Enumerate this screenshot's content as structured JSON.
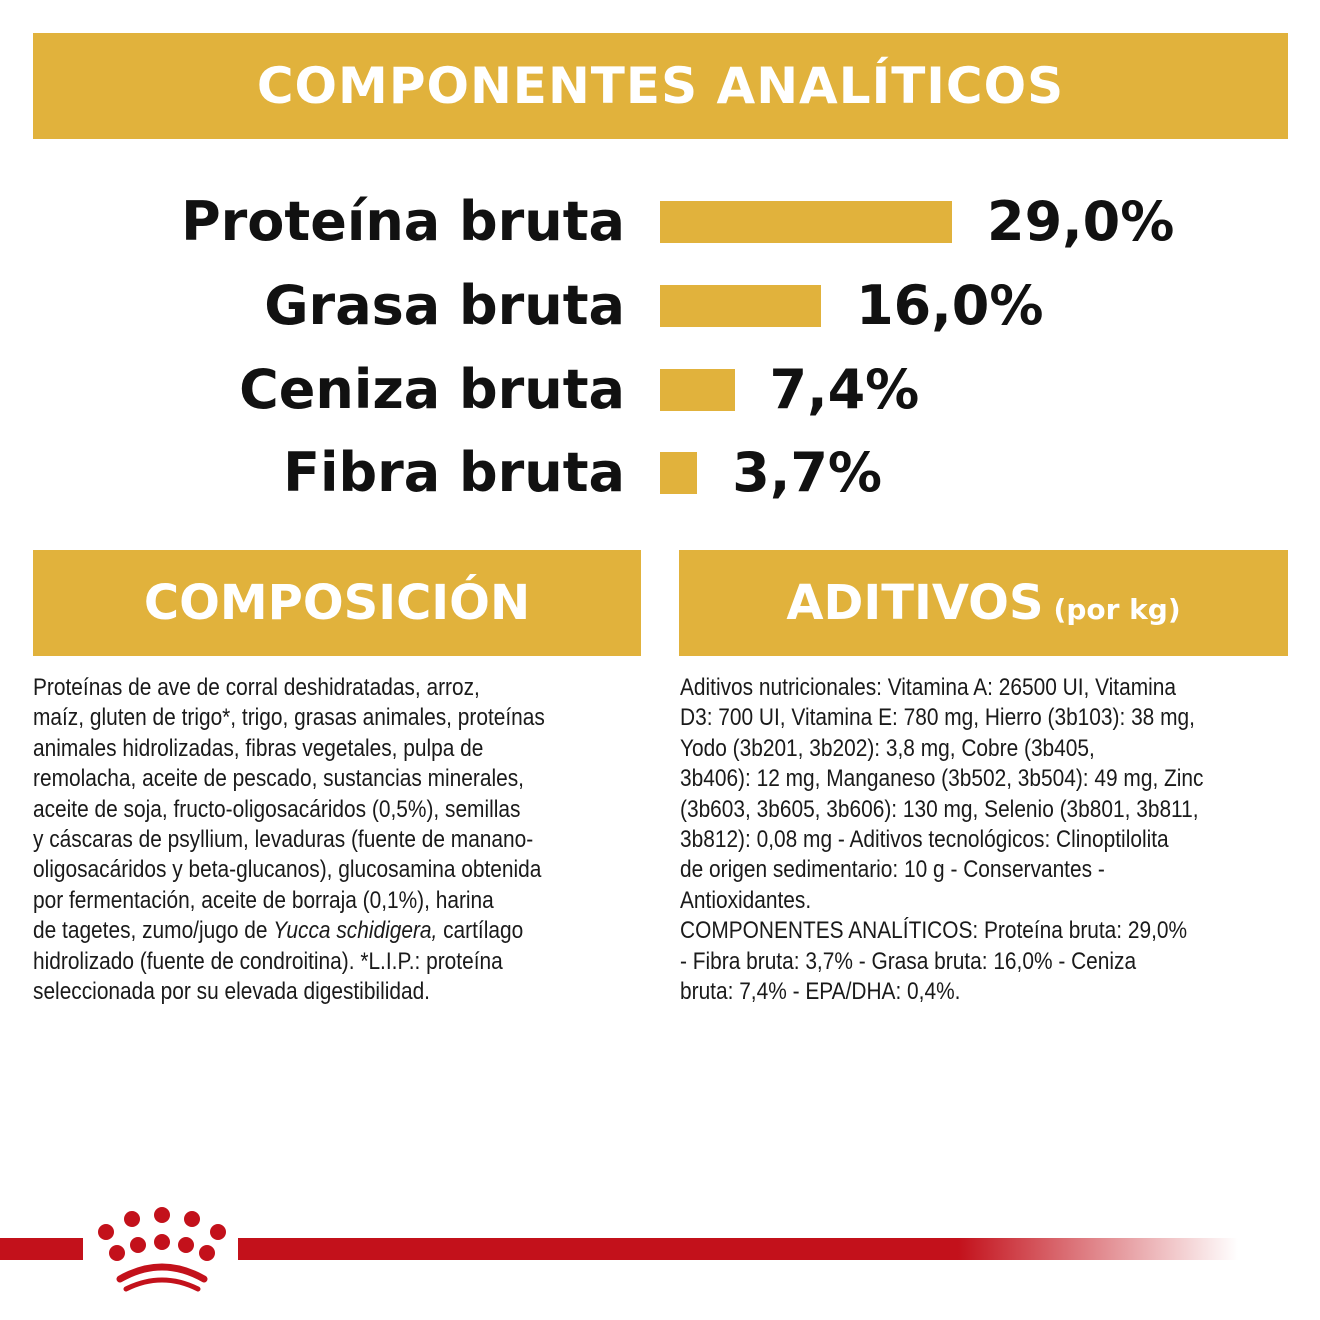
{
  "header": {
    "title": "COMPONENTES ANALÍTICOS"
  },
  "colors": {
    "gold": "#E1B23C",
    "brand_red": "#C3111B"
  },
  "chart_data": {
    "type": "bar",
    "orientation": "horizontal",
    "categories": [
      "Proteína bruta",
      "Grasa bruta",
      "Ceniza bruta",
      "Fibra bruta"
    ],
    "values": [
      29.0,
      16.0,
      7.4,
      3.7
    ],
    "value_labels": [
      "29,0%",
      "16,0%",
      "7,4%",
      "3,7%"
    ],
    "unit": "%"
  },
  "composicion": {
    "title": "COMPOSICIÓN",
    "lines": [
      "Proteínas de ave de corral deshidratadas, arroz,",
      "maíz, gluten de trigo*, trigo, grasas animales, proteínas",
      "animales hidrolizadas, fibras vegetales, pulpa de",
      "remolacha, aceite de pescado, sustancias minerales,",
      "aceite de soja, fructo-oligosacáridos (0,5%), semillas",
      "y cáscaras de psyllium, levaduras (fuente de manano-",
      "oligosacáridos y beta-glucanos), glucosamina obtenida",
      "por fermentación, aceite de borraja (0,1%), harina"
    ],
    "line9_pre": "de tagetes, zumo/jugo de ",
    "line9_italic": "Yucca schidigera,",
    "line9_post": " cartílago",
    "lines_end": [
      "hidrolizado (fuente de condroitina). *L.I.P.: proteína",
      "seleccionada por su elevada digestibilidad."
    ]
  },
  "aditivos": {
    "title": "ADITIVOS",
    "subtitle": "(por kg)",
    "lines": [
      "Aditivos nutricionales: Vitamina A: 26500 UI, Vitamina",
      "D3: 700 UI, Vitamina E: 780 mg, Hierro (3b103): 38 mg,",
      "Yodo (3b201, 3b202): 3,8 mg, Cobre (3b405,",
      "3b406): 12 mg, Manganeso (3b502, 3b504): 49 mg, Zinc",
      "(3b603, 3b605, 3b606): 130 mg, Selenio (3b801, 3b811,",
      "3b812): 0,08 mg - Aditivos tecnológicos: Clinoptilolita",
      "de origen sedimentario: 10 g - Conservantes -",
      "Antioxidantes.",
      "COMPONENTES ANALÍTICOS: Proteína bruta: 29,0%",
      "- Fibra bruta: 3,7% - Grasa bruta: 16,0% - Ceniza",
      "bruta: 7,4% - EPA/DHA: 0,4%."
    ]
  }
}
